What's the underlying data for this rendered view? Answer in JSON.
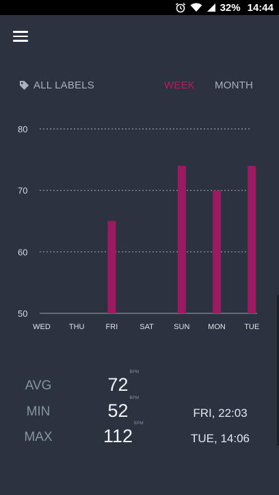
{
  "status_bar": {
    "battery": "32%",
    "time": "14:44",
    "icons": [
      "alarm-icon",
      "wifi-icon",
      "signal-icon",
      "battery-icon"
    ]
  },
  "toolbar": {
    "menu_icon": "hamburger-menu-icon"
  },
  "filter": {
    "label": "ALL LABELS",
    "icon": "tag-icon"
  },
  "range": {
    "week": "WEEK",
    "month": "MONTH",
    "selected": "WEEK"
  },
  "colors": {
    "accent": "#c2185b",
    "bar": "#9c1a62",
    "background": "#2b3240"
  },
  "chart_data": {
    "type": "bar",
    "categories": [
      "WED",
      "THU",
      "FRI",
      "SAT",
      "SUN",
      "MON",
      "TUE"
    ],
    "values": [
      null,
      null,
      65,
      null,
      74,
      70,
      74
    ],
    "ylim": [
      50,
      80
    ],
    "yticks": [
      "50",
      "60",
      "70",
      "80"
    ],
    "grid": true
  },
  "stats": [
    {
      "label": "AVG",
      "value": "72",
      "unit": "BPM",
      "date": ""
    },
    {
      "label": "MIN",
      "value": "52",
      "unit": "BPM",
      "date": "FRI, 22:03"
    },
    {
      "label": "MAX",
      "value": "112",
      "unit": "BPM",
      "date": "TUE, 14:06"
    }
  ]
}
